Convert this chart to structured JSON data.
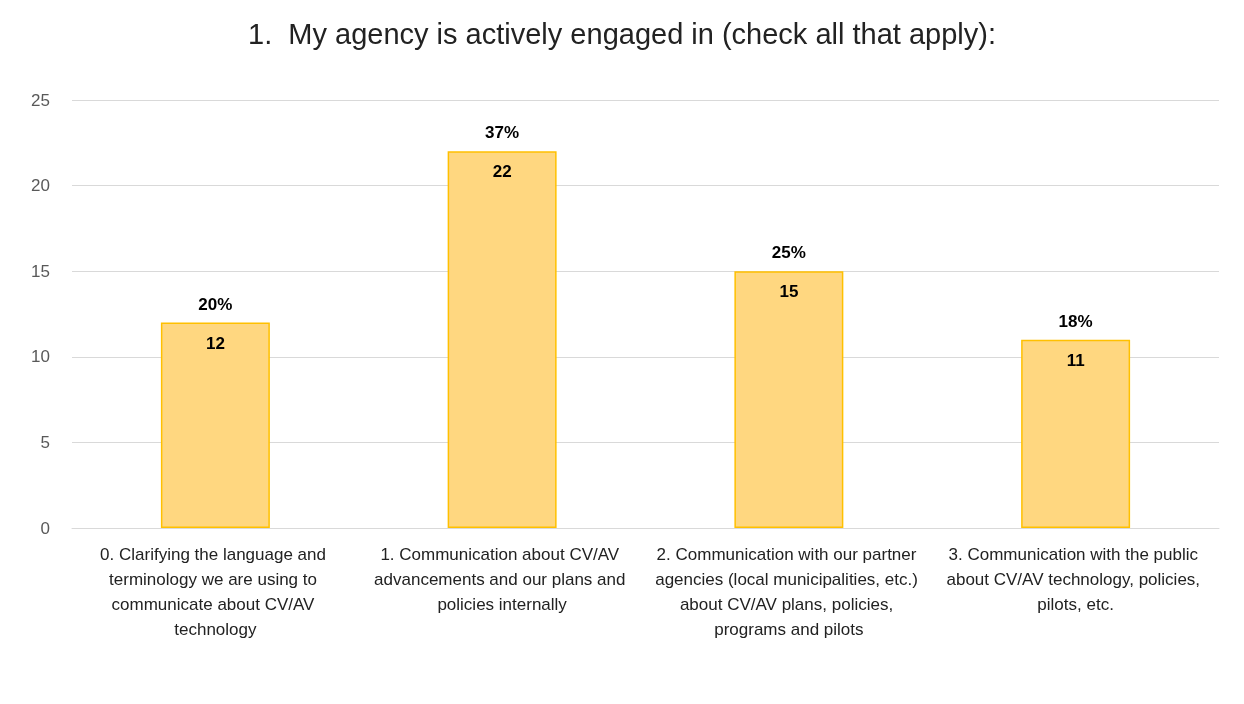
{
  "chart_data": {
    "type": "bar",
    "title": "1.  My agency is actively engaged in (check all that apply):",
    "categories": [
      "0. Clarifying the language and terminology we are using to communicate about CV/AV technology",
      "1. Communication about CV/AV advancements and our plans and policies internally",
      "2. Communication with our partner agencies (local municipalities, etc.) about CV/AV plans, policies, programs and pilots",
      "3. Communication with the public about CV/AV technology, policies, pilots, etc."
    ],
    "values": [
      12,
      22,
      15,
      11
    ],
    "color": "#ffd780",
    "data_labels": true,
    "annotations": [
      {
        "text": "20%",
        "x": "0. Clarifying the language and terminology we are using to communicate about CV/AV technology",
        "y": 12
      },
      {
        "text": "37%",
        "x": "1. Communication about CV/AV advancements and our plans and policies internally",
        "y": 22
      },
      {
        "text": "25%",
        "x": "2. Communication with our partner agencies (local municipalities, etc.) about CV/AV plans, policies, programs and pilots",
        "y": 15
      },
      {
        "text": "18%",
        "x": "3. Communication with the public about CV/AV technology, policies, pilots, etc.",
        "y": 11
      }
    ],
    "ylim": [
      0,
      25
    ],
    "yticks": [
      0,
      5,
      10,
      15,
      20,
      25
    ],
    "grid": "y"
  }
}
